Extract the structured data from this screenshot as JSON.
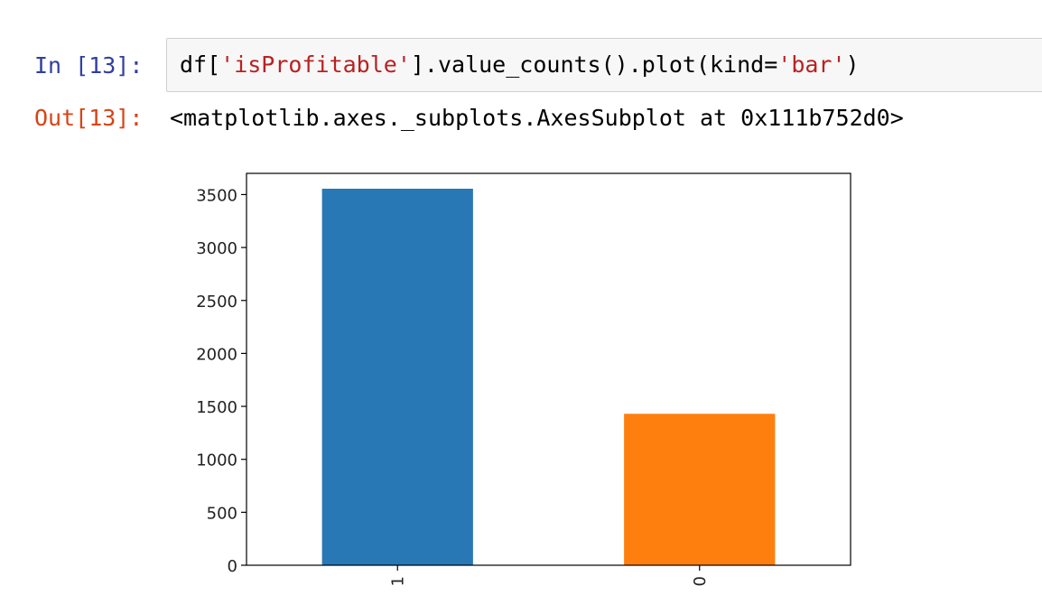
{
  "cell": {
    "in_prompt": "In [13]:",
    "out_prompt": "Out[13]:",
    "code": {
      "part1": "df[",
      "string1": "'isProfitable'",
      "part2": "].value_counts().plot(kind=",
      "string2": "'bar'",
      "part3": ")"
    },
    "output_repr": "<matplotlib.axes._subplots.AxesSubplot at 0x111b752d0>"
  },
  "colors": {
    "in_prompt": "#303f9f",
    "out_prompt": "#d84315",
    "string": "#ba2121",
    "input_bg": "#f7f7f7",
    "bar_1": "#2878b5",
    "bar_0": "#ff7f0e"
  },
  "chart_data": {
    "type": "bar",
    "categories": [
      "1",
      "0"
    ],
    "values": [
      3555,
      1430
    ],
    "colors": [
      "#2878b5",
      "#ff7f0e"
    ],
    "title": "",
    "xlabel": "",
    "ylabel": "",
    "ylim": [
      0,
      3700
    ],
    "yticks": [
      0,
      500,
      1000,
      1500,
      2000,
      2500,
      3000,
      3500
    ],
    "ytick_labels": [
      "0",
      "500",
      "1000",
      "1500",
      "2000",
      "2500",
      "3000",
      "3500"
    ],
    "xtick_rotation": "vertical",
    "grid": false,
    "legend": false
  }
}
